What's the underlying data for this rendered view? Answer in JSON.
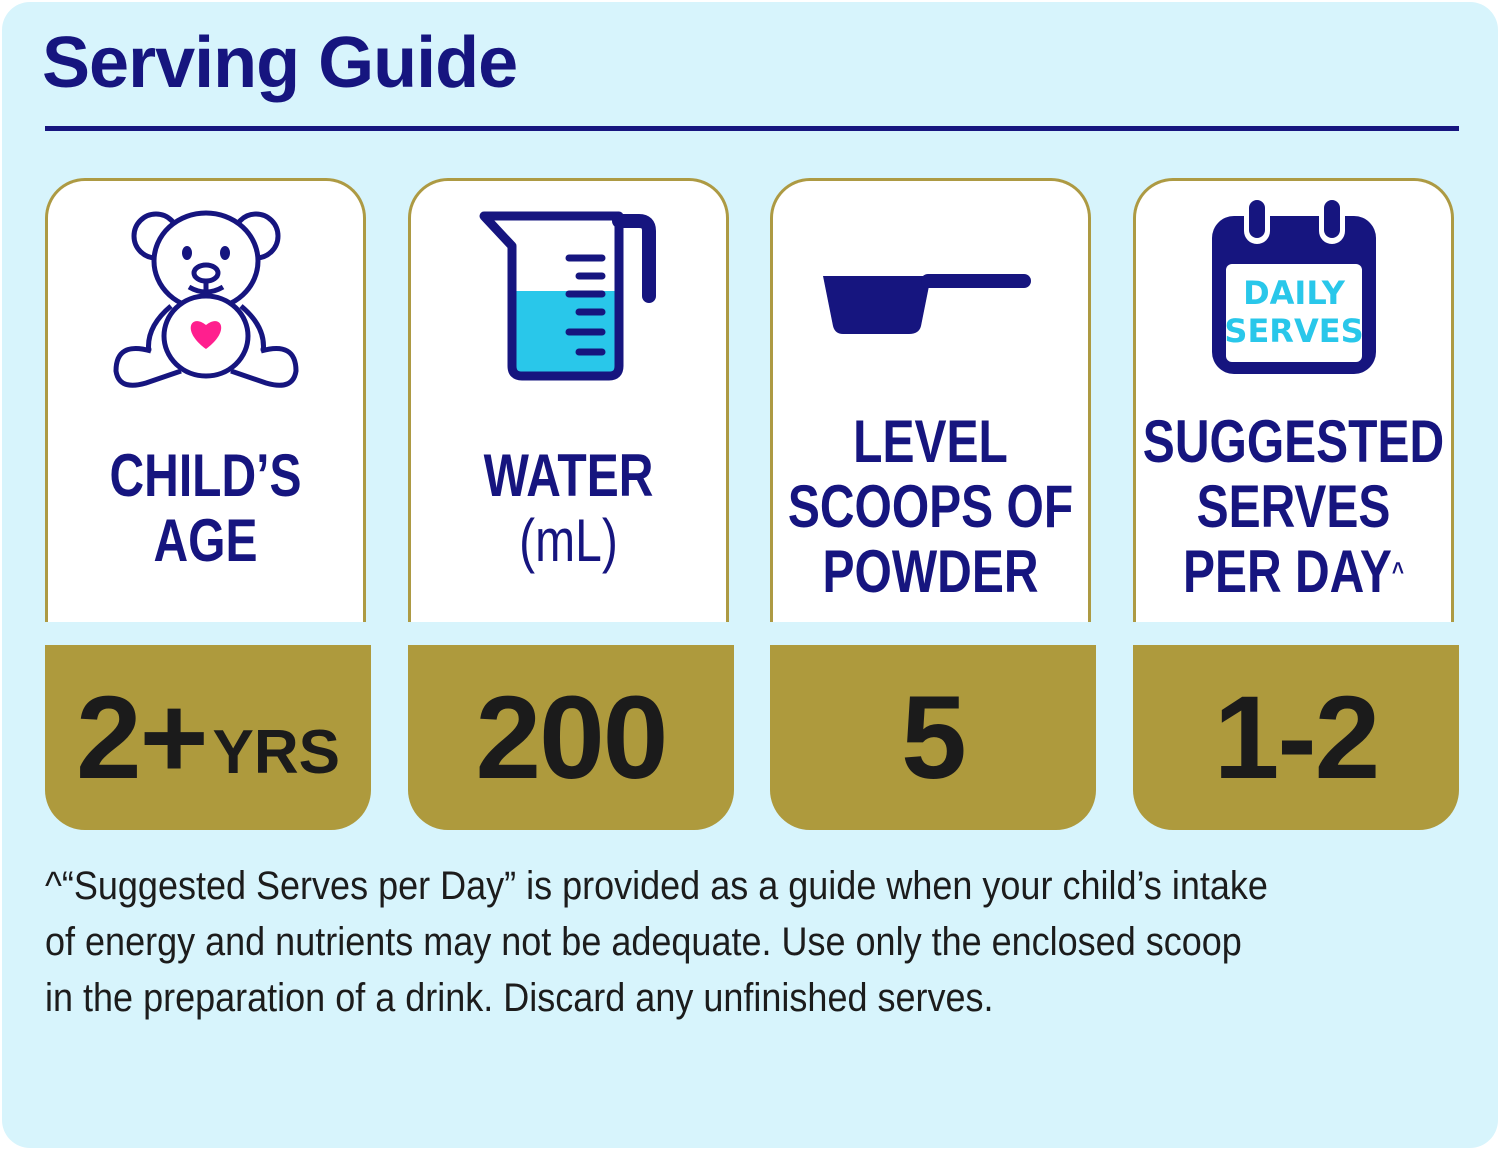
{
  "title": "Serving Guide",
  "colors": {
    "background": "#d7f4fc",
    "navy": "#16157f",
    "gold": "#ae9a3d",
    "cyan": "#29c7ea",
    "heart": "#ff1f8e"
  },
  "cards": [
    {
      "icon": "teddy-bear-icon",
      "label_lines": [
        "CHILD’S",
        "AGE"
      ],
      "value": "2+",
      "value_unit": "YRS"
    },
    {
      "icon": "measuring-jug-icon",
      "label_lines": [
        "WATER",
        "(mL)"
      ],
      "value": "200"
    },
    {
      "icon": "scoop-icon",
      "label_lines": [
        "LEVEL",
        "SCOOPS OF",
        "POWDER"
      ],
      "value": "5"
    },
    {
      "icon": "calendar-icon",
      "icon_text": [
        "DAILY",
        "SERVES"
      ],
      "label_lines": [
        "SUGGESTED",
        "SERVES",
        "PER DAY"
      ],
      "label_mark": "^",
      "value": "1-2"
    }
  ],
  "footnote": [
    "^“Suggested Serves per Day” is provided as a guide when your child’s intake",
    "of energy and nutrients may not be adequate. Use only the enclosed scoop",
    "in the preparation of a drink. Discard any unfinished serves."
  ]
}
